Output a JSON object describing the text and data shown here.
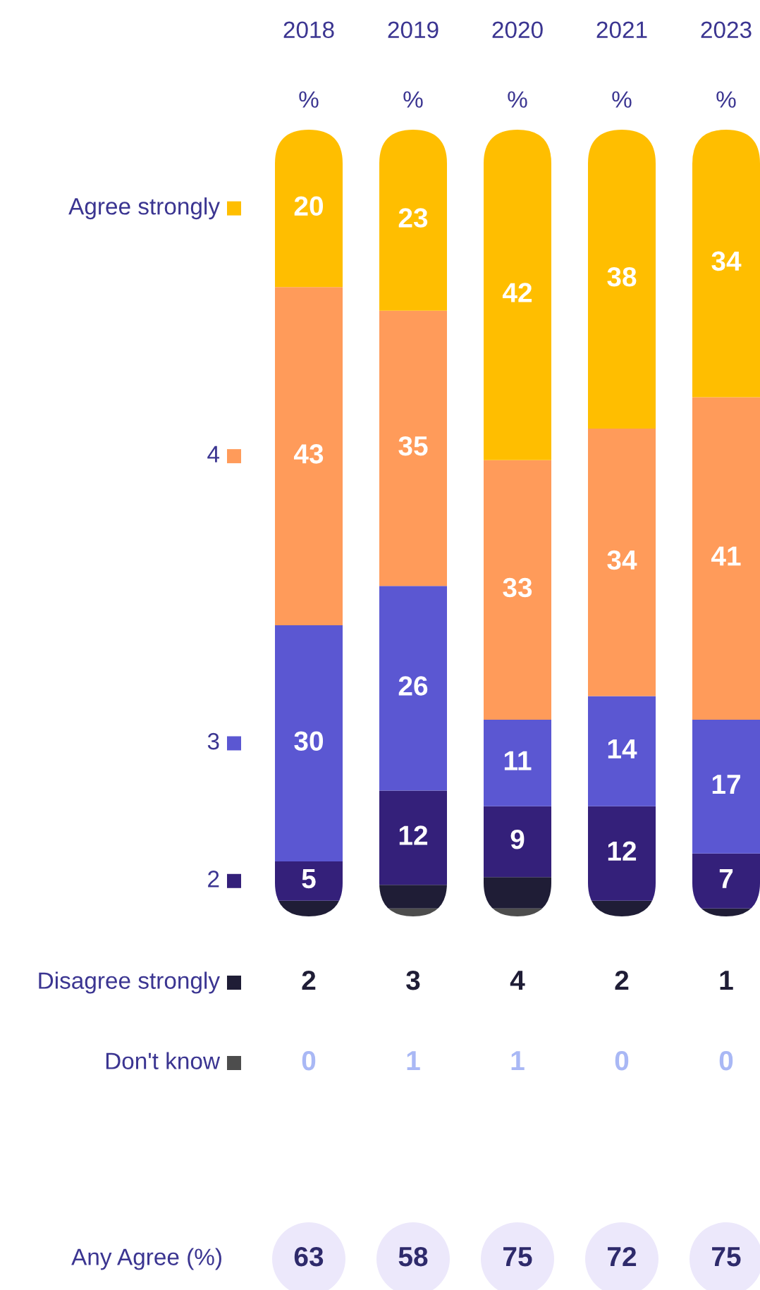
{
  "chart_data": {
    "type": "bar",
    "stacked": true,
    "categories": [
      "2018",
      "2019",
      "2020",
      "2021",
      "2023"
    ],
    "ylim": [
      0,
      100
    ],
    "tick_labels": "x",
    "data_labels": true,
    "legend": "left",
    "series": [
      {
        "name": "Don't know",
        "color": "#4d4d4d",
        "values": [
          0,
          1,
          1,
          0,
          0
        ]
      },
      {
        "name": "Disagree strongly",
        "color": "#1f1d36",
        "values": [
          2,
          3,
          4,
          2,
          1
        ]
      },
      {
        "name": "2",
        "color": "#34207a",
        "values": [
          5,
          12,
          9,
          12,
          7
        ]
      },
      {
        "name": "3",
        "color": "#5b57d2",
        "values": [
          30,
          26,
          11,
          14,
          17
        ]
      },
      {
        "name": "4",
        "color": "#ff9b5a",
        "values": [
          43,
          35,
          33,
          34,
          41
        ]
      },
      {
        "name": "Agree strongly",
        "color": "#ffbe00",
        "values": [
          20,
          23,
          42,
          38,
          34
        ]
      }
    ],
    "annotations": [
      "%",
      "%",
      "%",
      "%",
      "%",
      "Any Agree (%)",
      "63",
      "58",
      "75",
      "72",
      "75"
    ]
  }
}
